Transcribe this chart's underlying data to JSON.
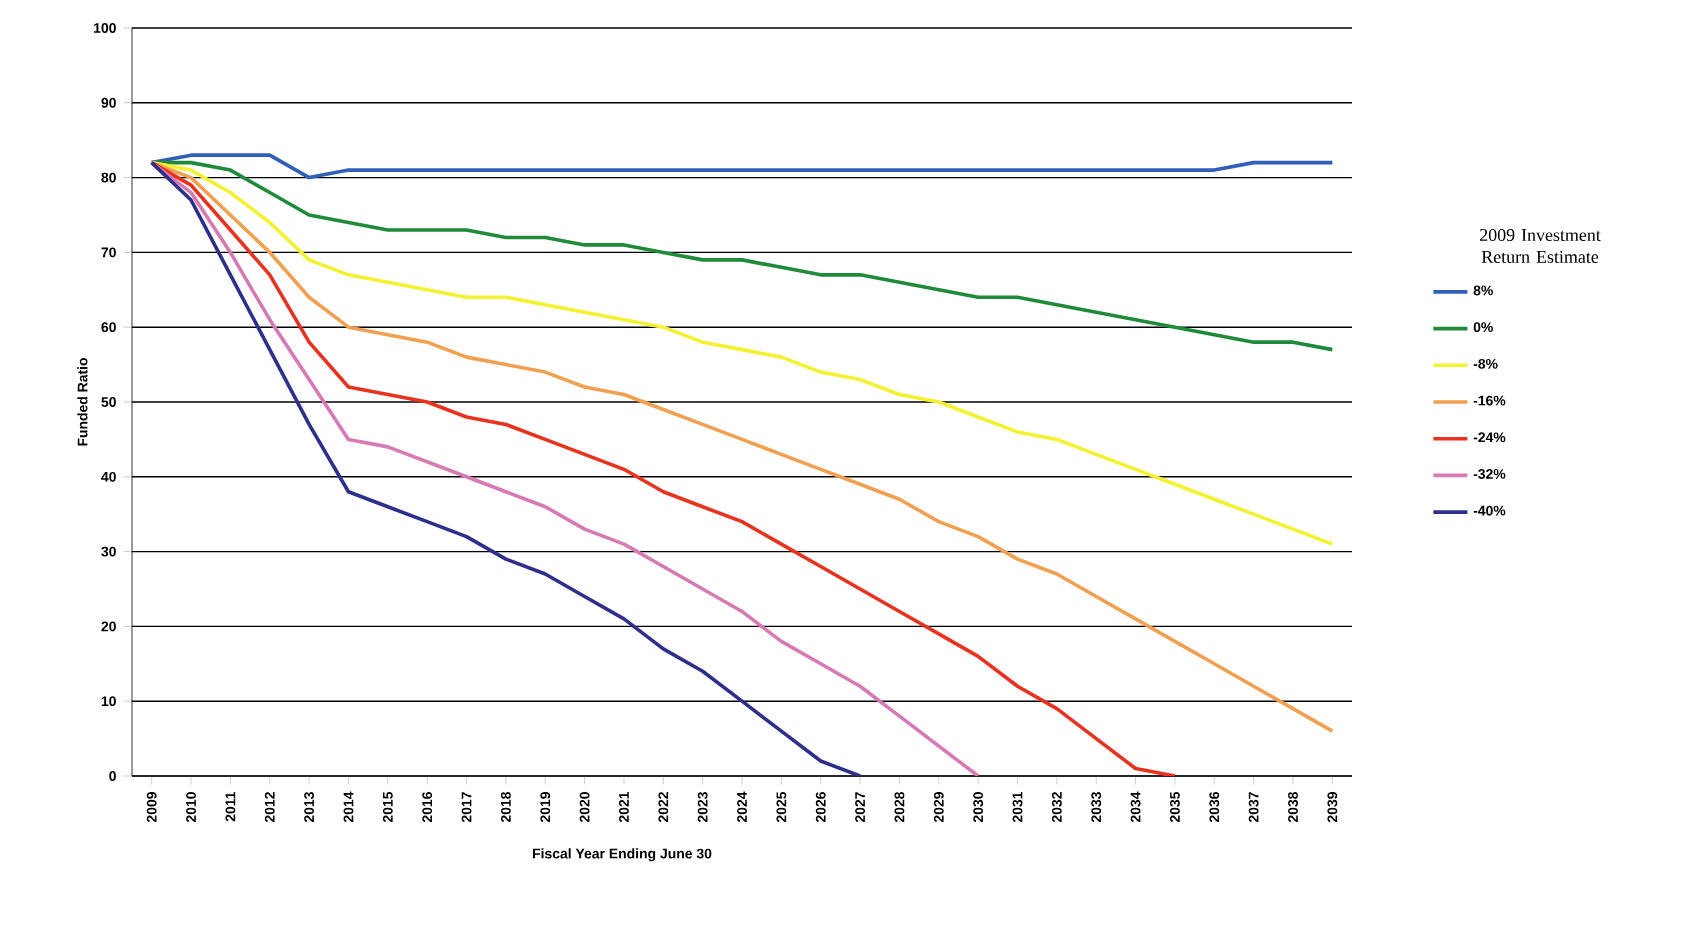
{
  "chart_data": {
    "type": "line",
    "xlabel": "Fiscal Year Ending June 30",
    "ylabel": "Funded Ratio",
    "legend_title": "2009 Investment Return Estimate",
    "categories": [
      "2009",
      "2010",
      "2011",
      "2012",
      "2013",
      "2014",
      "2015",
      "2016",
      "2017",
      "2018",
      "2019",
      "2020",
      "2021",
      "2022",
      "2023",
      "2024",
      "2025",
      "2026",
      "2027",
      "2028",
      "2029",
      "2030",
      "2031",
      "2032",
      "2033",
      "2034",
      "2035",
      "2036",
      "2037",
      "2038",
      "2039"
    ],
    "ylim": [
      0,
      100
    ],
    "yticks": [
      0,
      10,
      20,
      30,
      40,
      50,
      60,
      70,
      80,
      90,
      100
    ],
    "grid": "y",
    "legend": "right",
    "marker": "none",
    "line_style": "solid",
    "series": [
      {
        "name": "8%",
        "color": "#2f5fb8",
        "values": [
          82,
          83,
          83,
          83,
          80,
          81,
          81,
          81,
          81,
          81,
          81,
          81,
          81,
          81,
          81,
          81,
          81,
          81,
          81,
          81,
          81,
          81,
          81,
          81,
          81,
          81,
          81,
          81,
          82,
          82,
          82
        ]
      },
      {
        "name": "0%",
        "color": "#1e8a3a",
        "values": [
          82,
          82,
          81,
          78,
          75,
          74,
          73,
          73,
          73,
          72,
          72,
          71,
          71,
          70,
          69,
          69,
          68,
          67,
          67,
          66,
          65,
          64,
          64,
          63,
          62,
          61,
          60,
          59,
          58,
          58,
          57
        ]
      },
      {
        "name": "-8%",
        "color": "#f2f230",
        "values": [
          82,
          81,
          78,
          74,
          69,
          67,
          66,
          65,
          64,
          64,
          63,
          62,
          61,
          60,
          58,
          57,
          56,
          54,
          53,
          51,
          50,
          48,
          46,
          45,
          43,
          41,
          39,
          37,
          35,
          33,
          31
        ]
      },
      {
        "name": "-16%",
        "color": "#f0a050",
        "values": [
          82,
          80,
          75,
          70,
          64,
          60,
          59,
          58,
          56,
          55,
          54,
          52,
          51,
          49,
          47,
          45,
          43,
          41,
          39,
          37,
          34,
          32,
          29,
          27,
          24,
          21,
          18,
          15,
          12,
          9,
          6
        ]
      },
      {
        "name": "-24%",
        "color": "#e8321e",
        "values": [
          82,
          79,
          73,
          67,
          58,
          52,
          51,
          50,
          48,
          47,
          45,
          43,
          41,
          38,
          36,
          34,
          31,
          28,
          25,
          22,
          19,
          16,
          12,
          9,
          5,
          1,
          0,
          null,
          null,
          null,
          null
        ]
      },
      {
        "name": "-32%",
        "color": "#d77ab4",
        "values": [
          82,
          78,
          70,
          61,
          53,
          45,
          44,
          42,
          40,
          38,
          36,
          33,
          31,
          28,
          25,
          22,
          18,
          15,
          12,
          8,
          4,
          0,
          null,
          null,
          null,
          null,
          null,
          null,
          null,
          null,
          null
        ]
      },
      {
        "name": "-40%",
        "color": "#2e2e8c",
        "values": [
          82,
          77,
          67,
          57,
          47,
          38,
          36,
          34,
          32,
          29,
          27,
          24,
          21,
          17,
          14,
          10,
          6,
          2,
          0,
          null,
          null,
          null,
          null,
          null,
          null,
          null,
          null,
          null,
          null,
          null,
          null
        ]
      }
    ]
  }
}
